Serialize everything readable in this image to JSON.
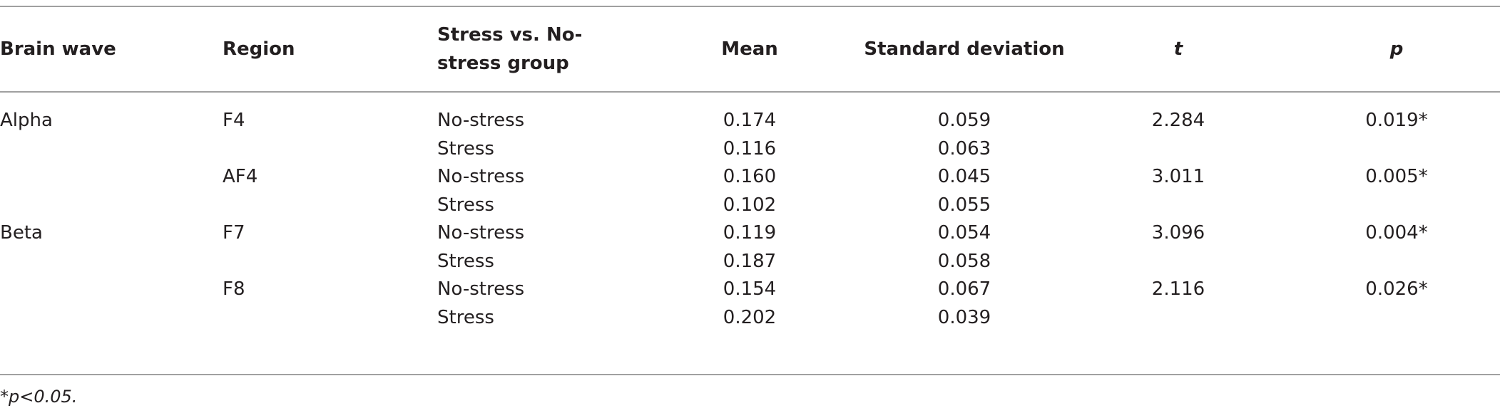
{
  "table": {
    "headers": [
      "Brain wave",
      "Region",
      "Stress vs. No-stress group",
      "Mean",
      "Standard deviation",
      "t",
      "p"
    ],
    "waves": [
      {
        "name": "Alpha",
        "regions": [
          {
            "region": "F4",
            "t": "2.284",
            "p": "0.019*",
            "groups": [
              {
                "group": "No-stress",
                "mean": "0.174",
                "sd": "0.059"
              },
              {
                "group": "Stress",
                "mean": "0.116",
                "sd": "0.063"
              }
            ]
          },
          {
            "region": "AF4",
            "t": "3.011",
            "p": "0.005*",
            "groups": [
              {
                "group": "No-stress",
                "mean": "0.160",
                "sd": "0.045"
              },
              {
                "group": "Stress",
                "mean": "0.102",
                "sd": "0.055"
              }
            ]
          }
        ]
      },
      {
        "name": "Beta",
        "regions": [
          {
            "region": "F7",
            "t": "3.096",
            "p": "0.004*",
            "groups": [
              {
                "group": "No-stress",
                "mean": "0.119",
                "sd": "0.054"
              },
              {
                "group": "Stress",
                "mean": "0.187",
                "sd": "0.058"
              }
            ]
          },
          {
            "region": "F8",
            "t": "2.116",
            "p": "0.026*",
            "groups": [
              {
                "group": "No-stress",
                "mean": "0.154",
                "sd": "0.067"
              },
              {
                "group": "Stress",
                "mean": "0.202",
                "sd": "0.039"
              }
            ]
          }
        ]
      }
    ],
    "footnote": "*p<0.05."
  }
}
